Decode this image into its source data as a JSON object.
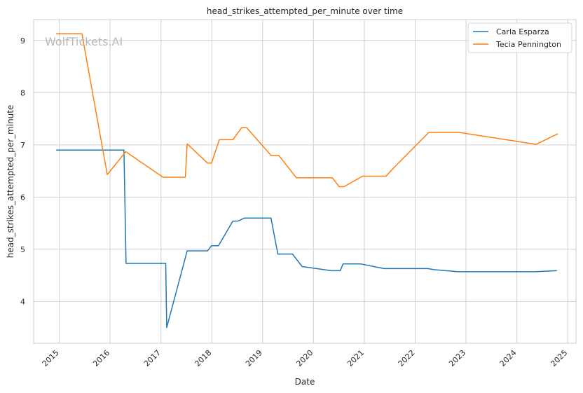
{
  "chart_data": {
    "type": "line",
    "title": "head_strikes_attempted_per_minute over time",
    "xlabel": "Date",
    "ylabel": "head_strikes_attempted_per_minute",
    "watermark": "WolfTickets.AI",
    "x_axis": "date",
    "xlim": [
      "2014-07-01",
      "2025-03-01"
    ],
    "ylim": [
      3.2,
      9.4
    ],
    "x_ticks": [
      "2015",
      "2016",
      "2017",
      "2018",
      "2019",
      "2020",
      "2021",
      "2022",
      "2023",
      "2024",
      "2025"
    ],
    "y_ticks": [
      4,
      5,
      6,
      7,
      8,
      9
    ],
    "grid": true,
    "legend_position": "top-right",
    "series": [
      {
        "name": "Carla Esparza",
        "color": "#1f77b4",
        "points": [
          [
            "2014-12-13",
            6.9
          ],
          [
            "2016-04-10",
            6.9
          ],
          [
            "2016-04-25",
            4.73
          ],
          [
            "2017-02-04",
            4.73
          ],
          [
            "2017-02-11",
            3.5
          ],
          [
            "2017-07-08",
            4.97
          ],
          [
            "2017-12-02",
            4.97
          ],
          [
            "2017-12-30",
            5.07
          ],
          [
            "2018-02-18",
            5.07
          ],
          [
            "2018-06-01",
            5.54
          ],
          [
            "2018-07-07",
            5.54
          ],
          [
            "2018-08-25",
            5.6
          ],
          [
            "2019-03-02",
            5.6
          ],
          [
            "2019-04-20",
            4.91
          ],
          [
            "2019-08-03",
            4.91
          ],
          [
            "2019-10-12",
            4.67
          ],
          [
            "2020-05-09",
            4.59
          ],
          [
            "2020-07-11",
            4.59
          ],
          [
            "2020-08-01",
            4.72
          ],
          [
            "2020-12-05",
            4.72
          ],
          [
            "2021-05-22",
            4.63
          ],
          [
            "2022-04-02",
            4.63
          ],
          [
            "2022-05-14",
            4.61
          ],
          [
            "2022-11-05",
            4.57
          ],
          [
            "2024-05-11",
            4.57
          ],
          [
            "2024-10-12",
            4.59
          ]
        ]
      },
      {
        "name": "Tecia Pennington",
        "color": "#ff7f0e",
        "points": [
          [
            "2014-12-13",
            9.13
          ],
          [
            "2015-06-13",
            9.13
          ],
          [
            "2015-12-12",
            6.43
          ],
          [
            "2016-04-23",
            6.87
          ],
          [
            "2017-01-15",
            6.38
          ],
          [
            "2017-06-25",
            6.38
          ],
          [
            "2017-07-08",
            7.02
          ],
          [
            "2017-12-02",
            6.65
          ],
          [
            "2017-12-30",
            6.65
          ],
          [
            "2018-02-24",
            7.1
          ],
          [
            "2018-06-01",
            7.1
          ],
          [
            "2018-08-04",
            7.33
          ],
          [
            "2018-09-08",
            7.33
          ],
          [
            "2019-03-02",
            6.8
          ],
          [
            "2019-04-27",
            6.8
          ],
          [
            "2019-08-31",
            6.37
          ],
          [
            "2020-05-16",
            6.37
          ],
          [
            "2020-07-04",
            6.2
          ],
          [
            "2020-08-08",
            6.2
          ],
          [
            "2020-12-19",
            6.4
          ],
          [
            "2021-06-05",
            6.4
          ],
          [
            "2021-08-07",
            6.58
          ],
          [
            "2022-04-09",
            7.24
          ],
          [
            "2022-11-12",
            7.24
          ],
          [
            "2024-05-18",
            7.01
          ],
          [
            "2024-10-19",
            7.21
          ]
        ]
      }
    ]
  }
}
